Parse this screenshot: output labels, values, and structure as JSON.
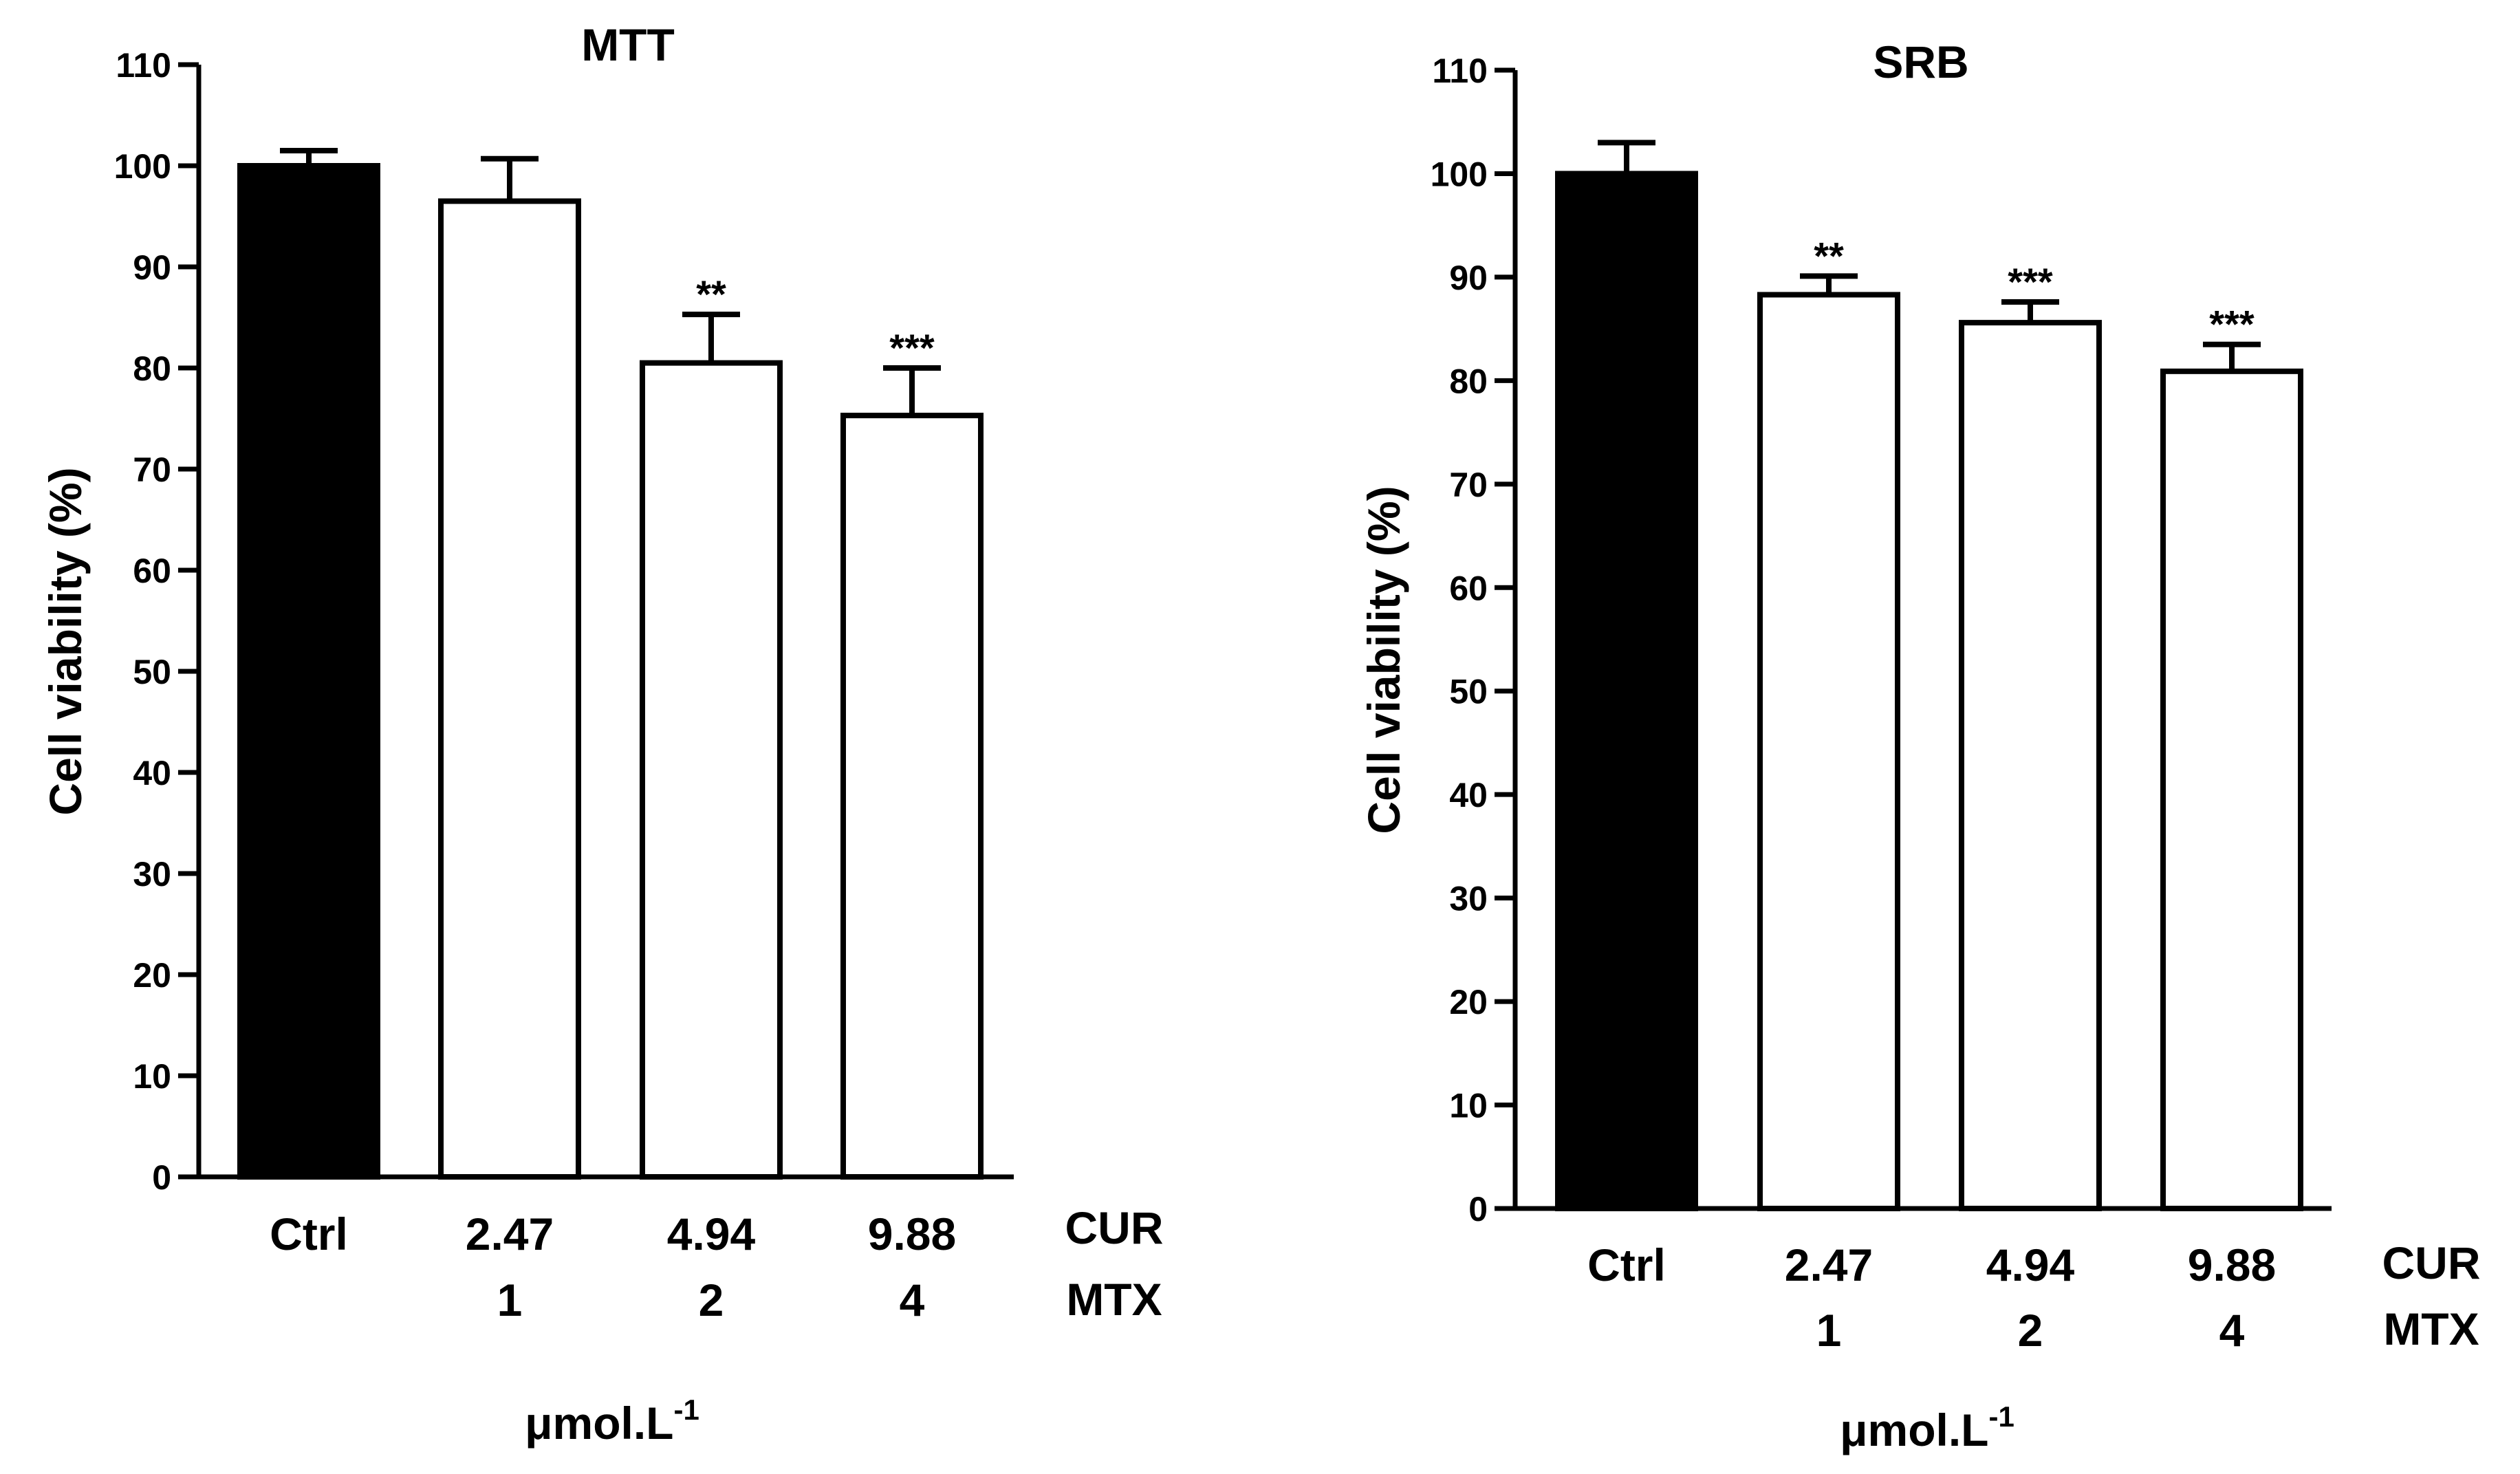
{
  "chart_data": [
    {
      "type": "bar",
      "title": "MTT",
      "ylabel": "Cell viability (%)",
      "ylim": [
        0,
        110
      ],
      "yticks": [
        0,
        10,
        20,
        30,
        40,
        50,
        60,
        70,
        80,
        90,
        100,
        110
      ],
      "categories": [
        "Ctrl",
        "2.47",
        "4.94",
        "9.88"
      ],
      "secondary_categories": [
        "",
        "1",
        "2",
        "4"
      ],
      "row_labels": [
        "CUR",
        "MTX"
      ],
      "unit_label": "μmol.L",
      "unit_exponent": "-1",
      "values": [
        100,
        96.5,
        80.5,
        75.3
      ],
      "errors": [
        1.5,
        4.2,
        4.8,
        4.7
      ],
      "significance": [
        "",
        "",
        "**",
        "***"
      ],
      "bar_colors": [
        "#000000",
        "#ffffff",
        "#ffffff",
        "#ffffff"
      ]
    },
    {
      "type": "bar",
      "title": "SRB",
      "ylabel": "Cell viability (%)",
      "ylim": [
        0,
        110
      ],
      "yticks": [
        0,
        10,
        20,
        30,
        40,
        50,
        60,
        70,
        80,
        90,
        100,
        110
      ],
      "categories": [
        "Ctrl",
        "2.47",
        "4.94",
        "9.88"
      ],
      "secondary_categories": [
        "",
        "1",
        "2",
        "4"
      ],
      "row_labels": [
        "CUR",
        "MTX"
      ],
      "unit_label": "μmol.L",
      "unit_exponent": "-1",
      "values": [
        100,
        88.3,
        85.6,
        80.9
      ],
      "errors": [
        3.0,
        1.8,
        2.0,
        2.6
      ],
      "significance": [
        "",
        "**",
        "***",
        "***"
      ],
      "bar_colors": [
        "#000000",
        "#ffffff",
        "#ffffff",
        "#ffffff"
      ]
    }
  ]
}
